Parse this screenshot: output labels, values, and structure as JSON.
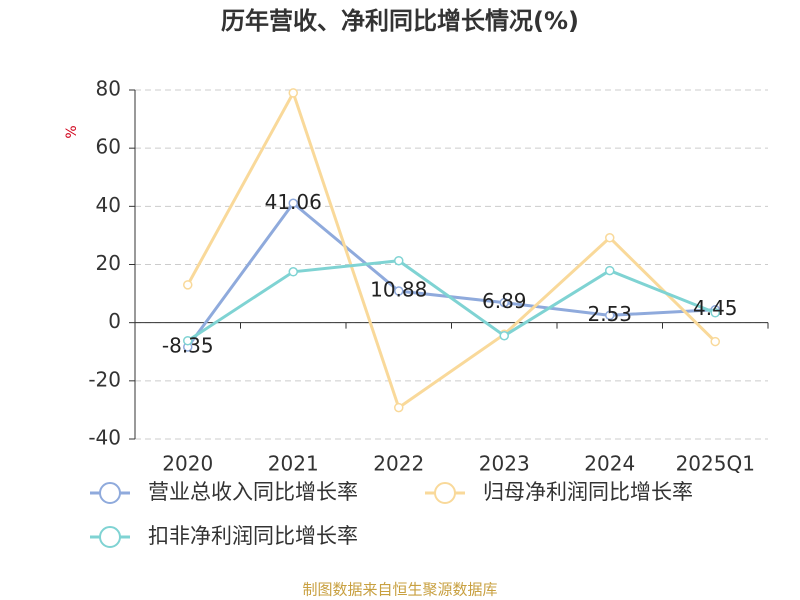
{
  "chart_data": {
    "type": "line",
    "title": "历年营收、净利同比增长情况(%)",
    "y_label": "%",
    "categories": [
      "2020",
      "2021",
      "2022",
      "2023",
      "2024",
      "2025Q1"
    ],
    "series": [
      {
        "name": "营业总收入同比增长率",
        "color": "#8faadc",
        "values": [
          -8.35,
          41.06,
          10.88,
          6.89,
          2.53,
          4.45
        ],
        "show_labels": true
      },
      {
        "name": "归母净利润同比增长率",
        "color": "#f9d99a",
        "values": [
          13,
          79,
          -29.2,
          -4,
          29.2,
          -6.5
        ],
        "show_labels": false
      },
      {
        "name": "扣非净利润同比增长率",
        "color": "#7fd3d3",
        "values": [
          -6.2,
          17.5,
          21.3,
          -4.5,
          17.9,
          3.4
        ],
        "show_labels": false
      }
    ],
    "ylim": [
      -40,
      80
    ],
    "yticks": [
      -40,
      -20,
      0,
      20,
      40,
      60,
      80
    ],
    "grid": true,
    "source": "制图数据来自恒生聚源数据库"
  }
}
